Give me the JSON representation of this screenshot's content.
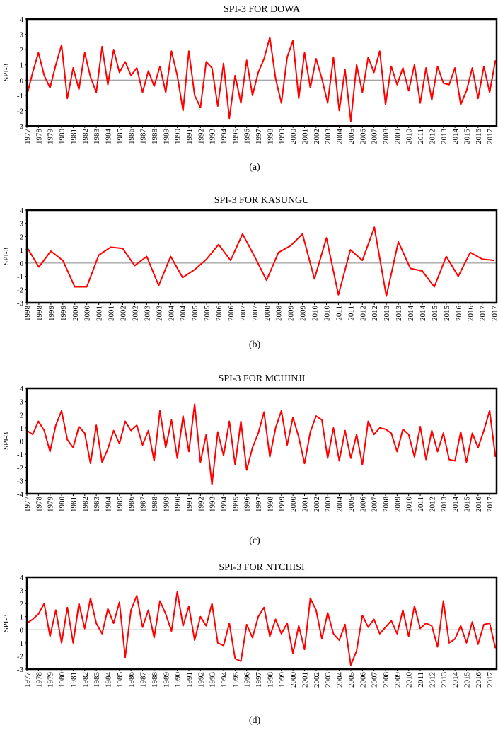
{
  "chart_data": [
    {
      "type": "line",
      "title": "SPI-3 FOR DOWA",
      "caption": "(a)",
      "y_label": "SPI-3",
      "color": "#ff0000",
      "x": [
        1977,
        1977.5,
        1978,
        1978.5,
        1979,
        1979.5,
        1980,
        1980.5,
        1981,
        1981.5,
        1982,
        1982.5,
        1983,
        1983.5,
        1984,
        1984.5,
        1985,
        1985.5,
        1986,
        1986.5,
        1987,
        1987.5,
        1988,
        1988.5,
        1989,
        1989.5,
        1990,
        1990.5,
        1991,
        1991.5,
        1992,
        1992.5,
        1993,
        1993.5,
        1994,
        1994.5,
        1995,
        1995.5,
        1996,
        1996.5,
        1997,
        1997.5,
        1998,
        1998.5,
        1999,
        1999.5,
        2000,
        2000.5,
        2001,
        2001.5,
        2002,
        2002.5,
        2003,
        2003.5,
        2004,
        2004.5,
        2005,
        2005.5,
        2006,
        2006.5,
        2007,
        2007.5,
        2008,
        2008.5,
        2009,
        2009.5,
        2010,
        2010.5,
        2011,
        2011.5,
        2012,
        2012.5,
        2013,
        2013.5,
        2014,
        2014.5,
        2015,
        2015.5,
        2016,
        2016.5,
        2017,
        2017.5
      ],
      "values": [
        -1,
        0.5,
        1.8,
        0.3,
        -0.5,
        1.0,
        2.3,
        -1.2,
        0.8,
        -0.6,
        1.8,
        0.2,
        -0.8,
        2.2,
        -0.3,
        2.0,
        0.5,
        1.2,
        0.3,
        0.8,
        -0.8,
        0.6,
        -0.4,
        0.9,
        -0.8,
        1.9,
        0.3,
        -2.0,
        1.9,
        -1.0,
        -1.8,
        1.2,
        0.8,
        -1.7,
        1.1,
        -2.5,
        0.3,
        -1.5,
        1.3,
        -1.0,
        0.5,
        1.4,
        2.8,
        0.1,
        -1.5,
        1.5,
        2.6,
        -1.2,
        1.8,
        -0.5,
        1.4,
        0.1,
        -1.5,
        1.5,
        -2.0,
        0.7,
        -2.7,
        1.0,
        -0.8,
        1.5,
        0.5,
        1.9,
        -1.6,
        0.9,
        -0.3,
        0.8,
        -0.7,
        1.0,
        -1.5,
        0.8,
        -1.3,
        0.9,
        -0.2,
        -0.3,
        0.8,
        -1.6,
        -0.7,
        0.8,
        -1.2,
        0.9,
        -0.8,
        1.3
      ],
      "xlim": [
        1977,
        2017.6
      ],
      "xticks": [
        1977,
        1978,
        1979,
        1980,
        1981,
        1982,
        1983,
        1984,
        1985,
        1986,
        1987,
        1988,
        1989,
        1990,
        1991,
        1992,
        1993,
        1994,
        1995,
        1996,
        1997,
        1998,
        1999,
        2000,
        2001,
        2002,
        2003,
        2004,
        2005,
        2006,
        2007,
        2008,
        2009,
        2010,
        2011,
        2012,
        2013,
        2014,
        2015,
        2016,
        2017
      ],
      "ylim": [
        -3,
        4
      ],
      "yticks": [
        -3,
        -2,
        -1,
        0,
        1,
        2,
        3,
        4
      ]
    },
    {
      "type": "line",
      "title": "SPI-3 FOR KASUNGU",
      "caption": "(b)",
      "y_label": "SPI-3",
      "color": "#ff0000",
      "x": [
        1998,
        1998.5,
        1999,
        1999.5,
        2000,
        2000.5,
        2001,
        2001.5,
        2002,
        2002.5,
        2003,
        2003.5,
        2004,
        2004.5,
        2005,
        2005.5,
        2006,
        2006.5,
        2007,
        2007.5,
        2008,
        2008.5,
        2009,
        2009.5,
        2010,
        2010.5,
        2011,
        2011.5,
        2012,
        2012.5,
        2013,
        2013.5,
        2014,
        2014.5,
        2015,
        2015.5,
        2016,
        2016.5,
        2017,
        2017.5
      ],
      "values": [
        1.2,
        -0.3,
        0.9,
        0.2,
        -1.8,
        -1.8,
        0.6,
        1.2,
        1.1,
        -0.2,
        0.5,
        -1.7,
        0.5,
        -1.1,
        -0.5,
        0.3,
        1.4,
        0.2,
        2.2,
        0.5,
        -1.3,
        0.8,
        1.3,
        2.2,
        -1.2,
        1.9,
        -2.4,
        1.0,
        0.2,
        2.7,
        -2.5,
        1.6,
        -0.4,
        -0.6,
        -1.8,
        0.5,
        -1.0,
        0.8,
        0.3,
        0.2
      ],
      "xlim": [
        1998,
        2017.6
      ],
      "xticks": [
        1998,
        {
          "value": 1998.5,
          "label": "1998"
        },
        1999,
        {
          "value": 1999.5,
          "label": "1999"
        },
        2000,
        {
          "value": 2000.5,
          "label": "2000"
        },
        2001,
        {
          "value": 2001.5,
          "label": "2001"
        },
        2002,
        {
          "value": 2002.5,
          "label": "2002"
        },
        2003,
        {
          "value": 2003.5,
          "label": "2003"
        },
        2004,
        {
          "value": 2004.5,
          "label": "2004"
        },
        2005,
        {
          "value": 2005.5,
          "label": "2005"
        },
        2006,
        {
          "value": 2006.5,
          "label": "2006"
        },
        2007,
        {
          "value": 2007.5,
          "label": "2007"
        },
        2008,
        {
          "value": 2008.5,
          "label": "2008"
        },
        2009,
        {
          "value": 2009.5,
          "label": "2009"
        },
        2010,
        {
          "value": 2010.5,
          "label": "2010"
        },
        2011,
        {
          "value": 2011.5,
          "label": "2011"
        },
        2012,
        {
          "value": 2012.5,
          "label": "2012"
        },
        2013,
        {
          "value": 2013.5,
          "label": "2013"
        },
        2014,
        {
          "value": 2014.5,
          "label": "2014"
        },
        2015,
        {
          "value": 2015.5,
          "label": "2015"
        },
        2016,
        {
          "value": 2016.5,
          "label": "2016"
        },
        2017,
        {
          "value": 2017.5,
          "label": "2017"
        }
      ],
      "ylim": [
        -3,
        4
      ],
      "yticks": [
        -3,
        -2,
        -1,
        0,
        1,
        2,
        3,
        4
      ]
    },
    {
      "type": "line",
      "title": "SPI-3 FOR MCHINJI",
      "caption": "(c)",
      "y_label": "SPI-3",
      "color": "#ff0000",
      "x": [
        1977,
        1977.5,
        1978,
        1978.5,
        1979,
        1979.5,
        1980,
        1980.5,
        1981,
        1981.5,
        1982,
        1982.5,
        1983,
        1983.5,
        1984,
        1984.5,
        1985,
        1985.5,
        1986,
        1986.5,
        1987,
        1987.5,
        1988,
        1988.5,
        1989,
        1989.5,
        1990,
        1990.5,
        1991,
        1991.5,
        1992,
        1992.5,
        1993,
        1993.5,
        1994,
        1994.5,
        1995,
        1995.5,
        1996,
        1996.5,
        1997,
        1997.5,
        1998,
        1998.5,
        1999,
        1999.5,
        2000,
        2000.5,
        2001,
        2001.5,
        2002,
        2002.5,
        2003,
        2003.5,
        2004,
        2004.5,
        2005,
        2005.5,
        2006,
        2006.5,
        2007,
        2007.5,
        2008,
        2008.5,
        2009,
        2009.5,
        2010,
        2010.5,
        2011,
        2011.5,
        2012,
        2012.5,
        2013,
        2013.5,
        2014,
        2014.5,
        2015,
        2015.5,
        2016,
        2016.5,
        2017,
        2017.5
      ],
      "values": [
        0.8,
        0.5,
        1.5,
        0.8,
        -0.8,
        1.2,
        2.3,
        0.1,
        -0.5,
        1.1,
        0.6,
        -1.7,
        1.2,
        -1.6,
        -0.6,
        0.8,
        -0.2,
        1.5,
        0.8,
        1.2,
        -0.3,
        0.8,
        -1.5,
        2.3,
        -0.5,
        1.6,
        -1.3,
        1.9,
        -0.8,
        2.8,
        -1.6,
        0.5,
        -3.3,
        0.7,
        -1.1,
        1.5,
        -1.8,
        1.5,
        -2.2,
        -0.5,
        0.6,
        2.2,
        -1.2,
        1.0,
        2.3,
        -0.3,
        1.8,
        0.3,
        -1.7,
        0.7,
        1.9,
        1.6,
        -1.3,
        1.0,
        -1.5,
        0.8,
        -1.3,
        0.5,
        -1.8,
        1.5,
        0.5,
        1.0,
        0.9,
        0.6,
        -0.8,
        0.9,
        0.5,
        -1.2,
        1.1,
        -1.4,
        0.8,
        -0.8,
        0.6,
        -1.4,
        -1.5,
        0.7,
        -1.6,
        0.6,
        -0.5,
        0.8,
        2.3,
        -1.2
      ],
      "xlim": [
        1977,
        2017.6
      ],
      "xticks": [
        1977,
        1978,
        1979,
        1980,
        1981,
        1982,
        1983,
        1984,
        1985,
        1986,
        1987,
        1988,
        1989,
        1990,
        1991,
        1992,
        1993,
        1994,
        1995,
        1996,
        1997,
        1998,
        1999,
        2000,
        2001,
        2002,
        2003,
        2004,
        2005,
        2006,
        2007,
        2008,
        2009,
        2010,
        2011,
        2012,
        2013,
        2014,
        2015,
        2016,
        2017
      ],
      "ylim": [
        -4,
        4
      ],
      "yticks": [
        -4,
        -3,
        -2,
        -1,
        0,
        1,
        2,
        3,
        4
      ]
    },
    {
      "type": "line",
      "title": "SPI-3 FOR NTCHISI",
      "caption": "(d)",
      "y_label": "SPI-3",
      "color": "#ff0000",
      "x": [
        1977,
        1977.5,
        1978,
        1978.5,
        1979,
        1979.5,
        1980,
        1980.5,
        1981,
        1981.5,
        1982,
        1982.5,
        1983,
        1983.5,
        1984,
        1984.5,
        1985,
        1985.5,
        1986,
        1986.5,
        1987,
        1987.5,
        1988,
        1988.5,
        1989,
        1989.5,
        1990,
        1990.5,
        1991,
        1991.5,
        1992,
        1992.5,
        1993,
        1993.5,
        1994,
        1994.5,
        1995,
        1995.5,
        1996,
        1996.5,
        1997,
        1997.5,
        1998,
        1998.5,
        1999,
        1999.5,
        2000,
        2000.5,
        2001,
        2001.5,
        2002,
        2002.5,
        2003,
        2003.5,
        2004,
        2004.5,
        2005,
        2005.5,
        2006,
        2006.5,
        2007,
        2007.5,
        2008,
        2008.5,
        2009,
        2009.5,
        2010,
        2010.5,
        2011,
        2011.5,
        2012,
        2012.5,
        2013,
        2013.5,
        2014,
        2014.5,
        2015,
        2015.5,
        2016,
        2016.5,
        2017,
        2017.5
      ],
      "values": [
        0.5,
        0.8,
        1.2,
        2.0,
        -0.5,
        1.5,
        -1.0,
        1.7,
        -1.0,
        2.0,
        0.1,
        2.4,
        0.5,
        -0.3,
        1.6,
        0.5,
        2.1,
        -2.1,
        1.5,
        2.6,
        0.2,
        1.5,
        -0.6,
        2.2,
        1.2,
        -0.1,
        2.9,
        0.3,
        1.8,
        -0.8,
        1.0,
        0.3,
        2.0,
        -1.0,
        -1.2,
        0.5,
        -2.2,
        -2.4,
        0.4,
        -0.6,
        1.0,
        1.7,
        -0.5,
        0.8,
        -0.3,
        0.5,
        -1.8,
        0.3,
        -1.5,
        2.4,
        1.5,
        -0.7,
        1.3,
        -0.3,
        -0.8,
        0.4,
        -2.7,
        -1.6,
        1.1,
        0.2,
        0.8,
        -0.3,
        0.2,
        0.7,
        -0.3,
        1.5,
        -0.5,
        1.8,
        0.1,
        0.5,
        0.3,
        -1.3,
        2.2,
        -1.0,
        -0.7,
        0.3,
        -1.0,
        0.6,
        -1.1,
        0.4,
        0.5,
        -1.4
      ],
      "xlim": [
        1977,
        2017.6
      ],
      "xticks": [
        1977,
        1978,
        1979,
        1980,
        1981,
        1982,
        1983,
        1984,
        1985,
        1986,
        1987,
        1988,
        1989,
        1990,
        1991,
        1992,
        1993,
        1994,
        1995,
        1996,
        1997,
        1998,
        1999,
        2000,
        2001,
        2002,
        2003,
        2004,
        2005,
        2006,
        2007,
        2008,
        2009,
        2010,
        2011,
        2012,
        2013,
        2014,
        2015,
        2016,
        2017
      ],
      "ylim": [
        -3,
        4
      ],
      "yticks": [
        -3,
        -2,
        -1,
        0,
        1,
        2,
        3,
        4
      ]
    }
  ]
}
